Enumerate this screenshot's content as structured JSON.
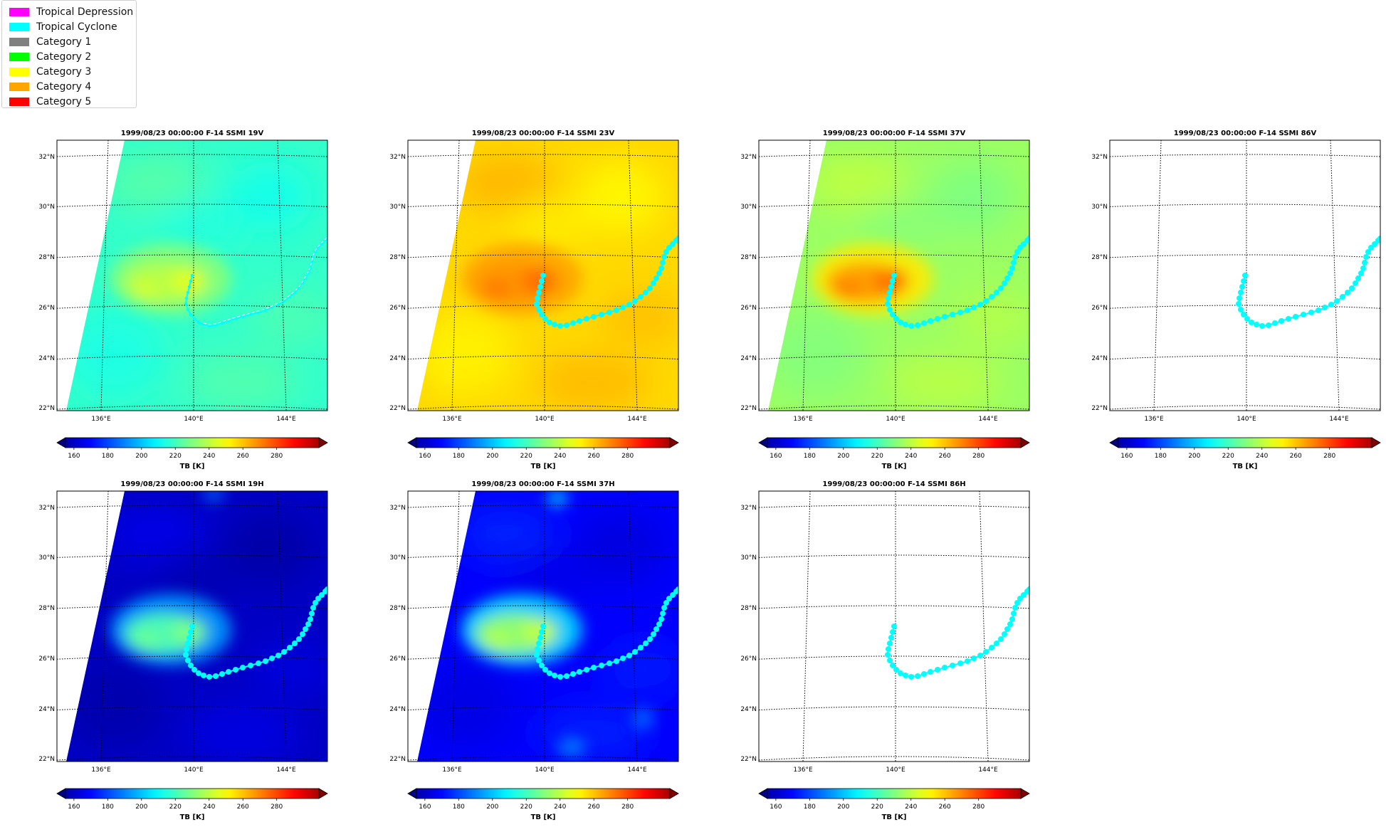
{
  "legend": {
    "items": [
      {
        "label": "Tropical Depression",
        "color": "#ff00ff"
      },
      {
        "label": "Tropical Cyclone",
        "color": "#00ffff"
      },
      {
        "label": "Category 1",
        "color": "#808080"
      },
      {
        "label": "Category 2",
        "color": "#00ff00"
      },
      {
        "label": "Category 3",
        "color": "#ffff00"
      },
      {
        "label": "Category 4",
        "color": "#ffa500"
      },
      {
        "label": "Category 5",
        "color": "#ff0000"
      }
    ]
  },
  "map": {
    "lat_labels": [
      "32°N",
      "30°N",
      "28°N",
      "26°N",
      "24°N",
      "22°N"
    ],
    "lon_labels": [
      "136°E",
      "140°E",
      "144°E"
    ],
    "colorbar_ticks": [
      "160",
      "180",
      "200",
      "220",
      "240",
      "260",
      "280"
    ],
    "colorbar_label": "TB [K]",
    "track_color": "#00ffff",
    "colormap": "jet"
  },
  "panels": [
    {
      "title": "1999/08/23 00:00:00  F-14 SSMI 19V",
      "has_data": true,
      "background_tb": 215,
      "core_tb": 240
    },
    {
      "title": "1999/08/23 00:00:00  F-14 SSMI 23V",
      "has_data": true,
      "background_tb": 250,
      "core_tb": 266
    },
    {
      "title": "1999/08/23 00:00:00  F-14 SSMI 37V",
      "has_data": true,
      "background_tb": 230,
      "core_tb": 265
    },
    {
      "title": "1999/08/23 00:00:00  F-14 SSMI 86V",
      "has_data": false
    },
    {
      "title": "1999/08/23 00:00:00  F-14 SSMI 19H",
      "has_data": true,
      "background_tb": 162,
      "core_tb": 225
    },
    {
      "title": "1999/08/23 00:00:00  F-14 SSMI 37H",
      "has_data": true,
      "background_tb": 170,
      "core_tb": 235
    },
    {
      "title": "1999/08/23 00:00:00  F-14 SSMI 86H",
      "has_data": false
    }
  ]
}
